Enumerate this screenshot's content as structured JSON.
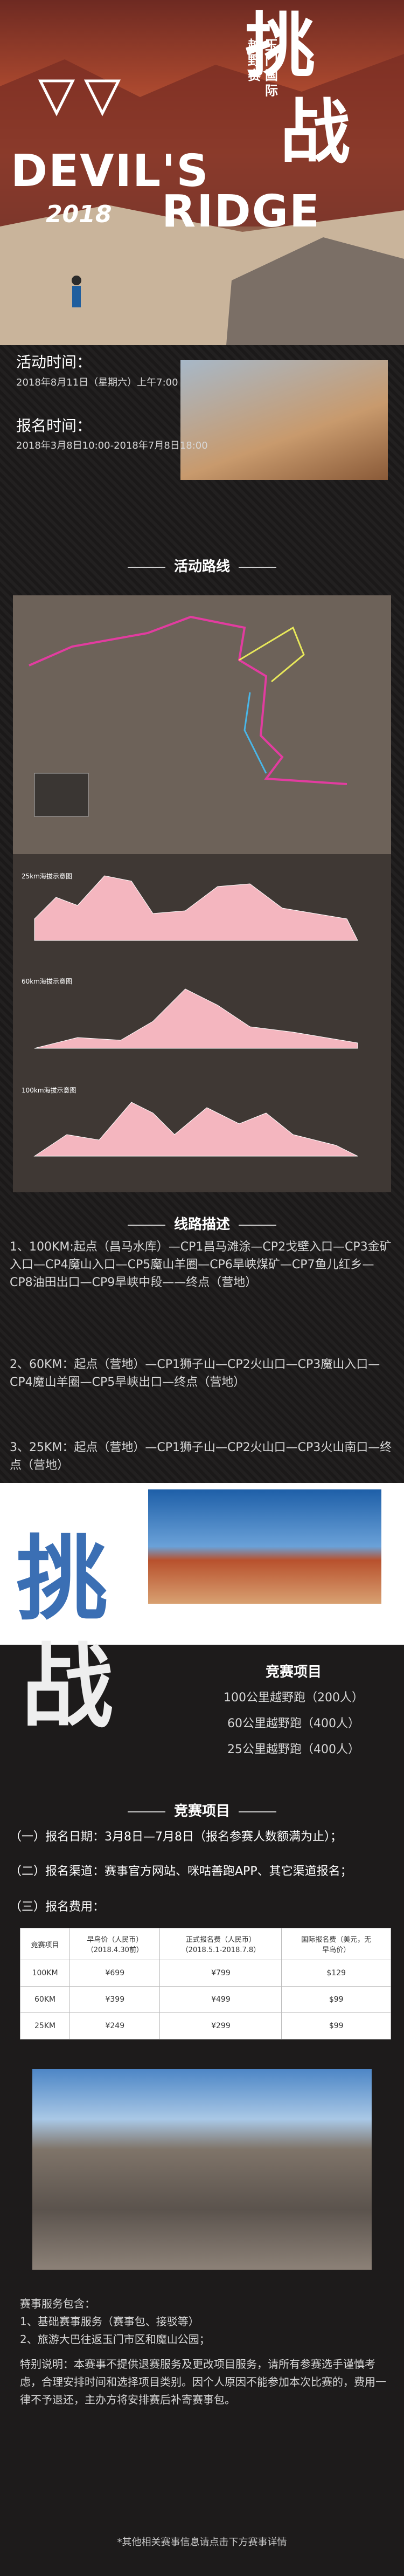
{
  "hero": {
    "calligraphy_1": "挑",
    "calligraphy_2": "战",
    "race_name_1": "玉门国际",
    "race_name_2": "越野赛",
    "title_1": "DEVIL'S",
    "title_2": "RIDGE",
    "year": "2018"
  },
  "schedule": {
    "event_label": "活动时间：",
    "event_time": "2018年8月11日（星期六）上午7:00",
    "signup_label": "报名时间：",
    "signup_time": "2018年3月8日10:00-2018年7月8日18:00"
  },
  "route": {
    "heading": "活动路线",
    "profiles": [
      "25km海拔示意图",
      "60km海拔示意图",
      "100km海拔示意图"
    ]
  },
  "route_description": {
    "heading": "线路描述",
    "items": [
      "1、100KM:起点（昌马水库）—CP1昌马滩涂—CP2戈壁入口—CP3金矿入口—CP4魔山入口—CP5魔山羊圈—CP6旱峡煤矿—CP7鱼儿红乡—CP8油田出口—CP9旱峡中段——终点（营地）",
      "2、60KM：起点（营地）—CP1狮子山—CP2火山口—CP3魔山入口—CP4魔山羊圈—CP5旱峡出口—终点（营地）",
      "3、25KM：起点（营地）—CP1狮子山—CP2火山口—CP3火山南口—终点（营地）"
    ]
  },
  "events": {
    "calligraphy_1": "挑",
    "calligraphy_2": "战",
    "heading": "竞赛项目",
    "items": [
      "100公里越野跑（200人）",
      "60公里越野跑（400人）",
      "25公里越野跑（400人）"
    ]
  },
  "registration": {
    "heading": "竞赛项目",
    "items": [
      "（一）报名日期：3月8日—7月8日（报名参赛人数额满为止）；",
      "（二）报名渠道：赛事官方网站、咪咕善跑APP、其它渠道报名；",
      "（三）报名费用："
    ],
    "table": {
      "header": [
        [
          "竞赛项目"
        ],
        [
          "早鸟价（人民币）",
          "（2018.4.30前）"
        ],
        [
          "正式报名费（人民币）",
          "（2018.5.1-2018.7.8）"
        ],
        [
          "国际报名费（美元，无",
          "早鸟价）"
        ]
      ],
      "rows": [
        [
          "100KM",
          "¥699",
          "¥799",
          "$129"
        ],
        [
          "60KM",
          "¥399",
          "¥499",
          "$99"
        ],
        [
          "25KM",
          "¥249",
          "¥299",
          "$99"
        ]
      ]
    }
  },
  "services": {
    "heading": "赛事服务包含：",
    "items": [
      "1、基础赛事服务（赛事包、接驳等）",
      "2、旅游大巴往返玉门市区和魔山公园；"
    ],
    "note": "特别说明：本赛事不提供退赛服务及更改项目服务，请所有参赛选手谨慎考虑，合理安排时间和选择项目类别。因个人原因不能参加本次比赛的，费用一律不予退还，主办方将安排赛后补寄赛事包。"
  },
  "footer": "*其他相关赛事信息请点击下方赛事详情"
}
